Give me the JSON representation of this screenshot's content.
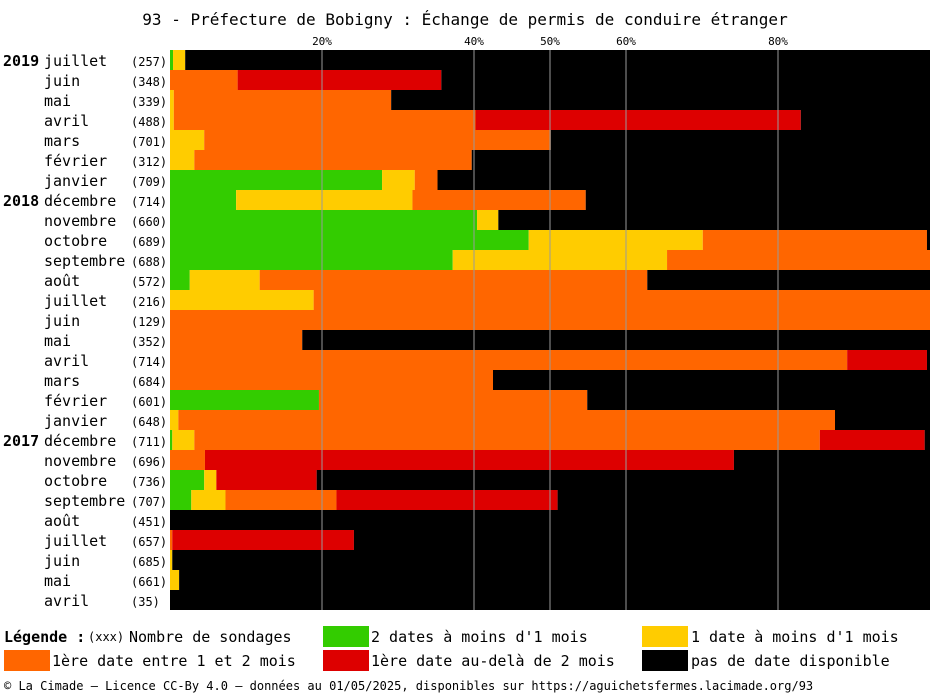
{
  "chart_data": {
    "type": "bar",
    "orientation": "horizontal-stacked-percent",
    "title": "93 - Préfecture de Bobigny : Échange de permis de conduire étranger",
    "x_ticks": [
      "20%",
      "40%",
      "50%",
      "60%",
      "80%"
    ],
    "x_tick_values": [
      20,
      40,
      50,
      60,
      80
    ],
    "xlim": [
      0,
      100
    ],
    "series_order": [
      "deux_dates",
      "une_date",
      "premiere_1_2",
      "premiere_2plus",
      "aucune"
    ],
    "colors": {
      "deux_dates": "#33cc00",
      "une_date": "#ffcc00",
      "premiere_1_2": "#ff6600",
      "premiere_2plus": "#dd0000",
      "aucune": "#000000"
    },
    "rows": [
      {
        "year": "2019",
        "month": "juillet",
        "count": "(257)",
        "values": [
          0.4,
          1.6,
          0,
          0,
          98.0
        ]
      },
      {
        "year": "",
        "month": "juin",
        "count": "(348)",
        "values": [
          0,
          0,
          8.9,
          26.8,
          64.3
        ]
      },
      {
        "year": "",
        "month": "mai",
        "count": "(339)",
        "values": [
          0,
          0.5,
          28.6,
          0,
          70.9
        ]
      },
      {
        "year": "",
        "month": "avril",
        "count": "(488)",
        "values": [
          0,
          0.5,
          39.7,
          42.8,
          17.0
        ]
      },
      {
        "year": "",
        "month": "mars",
        "count": "(701)",
        "values": [
          0,
          4.5,
          45.6,
          0,
          49.9
        ]
      },
      {
        "year": "",
        "month": "février",
        "count": "(312)",
        "values": [
          0,
          3.2,
          36.5,
          0,
          60.3
        ]
      },
      {
        "year": "",
        "month": "janvier",
        "count": "(709)",
        "values": [
          27.9,
          4.3,
          3.0,
          0,
          64.8
        ]
      },
      {
        "year": "2018",
        "month": "décembre",
        "count": "(714)",
        "values": [
          8.7,
          23.2,
          22.8,
          0,
          45.3
        ]
      },
      {
        "year": "",
        "month": "novembre",
        "count": "(660)",
        "values": [
          40.4,
          2.8,
          0,
          0,
          56.8
        ]
      },
      {
        "year": "",
        "month": "octobre",
        "count": "(689)",
        "values": [
          47.2,
          22.9,
          29.5,
          0,
          0.4
        ]
      },
      {
        "year": "",
        "month": "septembre",
        "count": "(688)",
        "values": [
          37.2,
          28.2,
          34.6,
          0,
          0
        ]
      },
      {
        "year": "",
        "month": "août",
        "count": "(572)",
        "values": [
          2.6,
          9.2,
          51.0,
          0,
          37.2
        ]
      },
      {
        "year": "",
        "month": "juillet",
        "count": "(216)",
        "values": [
          0,
          18.9,
          81.1,
          0,
          0
        ]
      },
      {
        "year": "",
        "month": "juin",
        "count": "(129)",
        "values": [
          0,
          0,
          100,
          0,
          0
        ]
      },
      {
        "year": "",
        "month": "mai",
        "count": "(352)",
        "values": [
          0,
          0,
          17.4,
          0,
          82.6
        ]
      },
      {
        "year": "",
        "month": "avril",
        "count": "(714)",
        "values": [
          0,
          0,
          89.1,
          10.5,
          0.4
        ]
      },
      {
        "year": "",
        "month": "mars",
        "count": "(684)",
        "values": [
          0,
          0,
          42.5,
          0,
          57.5
        ]
      },
      {
        "year": "",
        "month": "février",
        "count": "(601)",
        "values": [
          19.6,
          0,
          35.3,
          0,
          45.1
        ]
      },
      {
        "year": "",
        "month": "janvier",
        "count": "(648)",
        "values": [
          0,
          1.1,
          86.4,
          0,
          12.5
        ]
      },
      {
        "year": "2017",
        "month": "décembre",
        "count": "(711)",
        "values": [
          0.3,
          2.9,
          82.3,
          13.8,
          0.7
        ]
      },
      {
        "year": "",
        "month": "novembre",
        "count": "(696)",
        "values": [
          0,
          0,
          4.6,
          69.6,
          25.8
        ]
      },
      {
        "year": "",
        "month": "octobre",
        "count": "(736)",
        "values": [
          4.5,
          1.6,
          0,
          13.2,
          80.7
        ]
      },
      {
        "year": "",
        "month": "septembre",
        "count": "(707)",
        "values": [
          2.8,
          4.5,
          14.6,
          29.1,
          49.0
        ]
      },
      {
        "year": "",
        "month": "août",
        "count": "(451)",
        "values": [
          0,
          0,
          0,
          0,
          100
        ]
      },
      {
        "year": "",
        "month": "juillet",
        "count": "(657)",
        "values": [
          0,
          0,
          0.3,
          23.9,
          75.8
        ]
      },
      {
        "year": "",
        "month": "juin",
        "count": "(685)",
        "values": [
          0,
          0.3,
          0,
          0,
          99.7
        ]
      },
      {
        "year": "",
        "month": "mai",
        "count": "(661)",
        "values": [
          0,
          1.2,
          0,
          0,
          98.8
        ]
      },
      {
        "year": "",
        "month": "avril",
        "count": "(35)",
        "values": [
          0,
          0,
          0,
          0,
          100
        ]
      }
    ],
    "legend": {
      "title": "Légende :",
      "count_note": "(xxx)",
      "count_label": "Nombre de sondages",
      "items": [
        {
          "key": "deux_dates",
          "label": "2 dates à moins d'1 mois"
        },
        {
          "key": "une_date",
          "label": "1 date à moins d'1 mois"
        },
        {
          "key": "premiere_1_2",
          "label": "1ère date entre 1 et 2 mois"
        },
        {
          "key": "premiere_2plus",
          "label": "1ère date au-delà de 2 mois"
        },
        {
          "key": "aucune",
          "label": "pas de date disponible"
        }
      ]
    },
    "footer": "© La Cimade — Licence CC-By 4.0 — données au 01/05/2025, disponibles sur https://aguichetsfermes.lacimade.org/93"
  }
}
